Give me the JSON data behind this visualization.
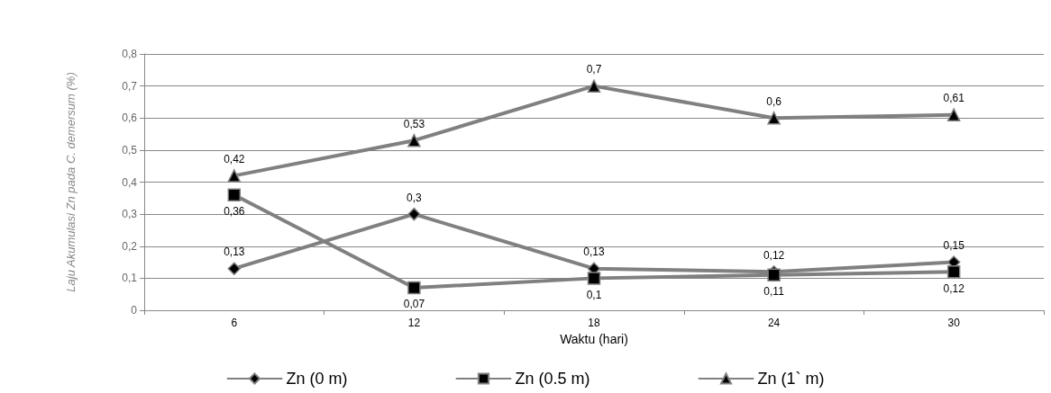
{
  "chart_data": {
    "type": "line",
    "xlabel": "Waktu (hari)",
    "ylabel": "Laju Akumulasi Zn pada C. demersum (%)",
    "categories": [
      "6",
      "12",
      "18",
      "24",
      "30"
    ],
    "series": [
      {
        "name": "Zn (0 m)",
        "color": "#808080",
        "marker": "diamond",
        "values": [
          0.13,
          0.3,
          0.13,
          0.12,
          0.15
        ],
        "value_labels": [
          "0,13",
          "0,3",
          "0,13",
          "0,12",
          "0,15"
        ]
      },
      {
        "name": "Zn (0.5 m)",
        "color": "#808080",
        "marker": "square",
        "values": [
          0.36,
          0.07,
          0.1,
          0.11,
          0.12
        ],
        "value_labels": [
          "0,36",
          "0,07",
          "0,1",
          "0,11",
          "0,12"
        ]
      },
      {
        "name": "Zn (1` m)",
        "color": "#808080",
        "marker": "triangle",
        "values": [
          0.42,
          0.53,
          0.7,
          0.6,
          0.61
        ],
        "value_labels": [
          "0,42",
          "0,53",
          "0,7",
          "0,6",
          "0,61"
        ]
      }
    ],
    "ylim": [
      0,
      0.8
    ],
    "yticks": [
      0,
      {
        "value": 0.1,
        "label": "0,1"
      },
      {
        "value": 0.2,
        "label": "0,2"
      },
      {
        "value": 0.3,
        "label": "0,3"
      },
      {
        "value": 0.4,
        "label": "0,4"
      },
      {
        "value": 0.5,
        "label": "0,5"
      },
      {
        "value": 0.6,
        "label": "0,6"
      },
      {
        "value": 0.7,
        "label": "0,7"
      },
      {
        "value": 0.8,
        "label": "0,8"
      }
    ],
    "grid": "y",
    "legend": "bottom",
    "line_style": "solid"
  }
}
